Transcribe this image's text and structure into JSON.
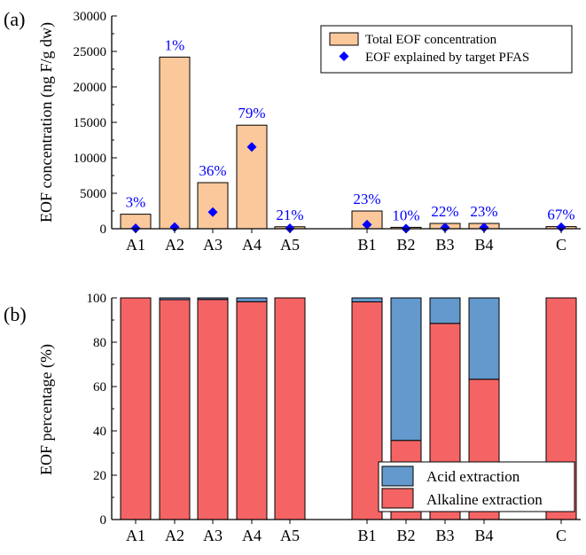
{
  "chart_data": [
    {
      "panel_label": "(a)",
      "type": "bar",
      "ylabel": "EOF concentration (ng F/g dw)",
      "ylim": [
        0,
        30000
      ],
      "yticks": [
        "0",
        "5000",
        "10000",
        "15000",
        "20000",
        "25000",
        "30000"
      ],
      "categories": [
        "A1",
        "A2",
        "A3",
        "A4",
        "A5",
        "B1",
        "B2",
        "B3",
        "B4",
        "C"
      ],
      "series": [
        {
          "name": "Total EOF concentration",
          "kind": "bar",
          "color": "#fbc89b",
          "values": [
            2050,
            24200,
            6500,
            14600,
            280,
            2500,
            200,
            750,
            750,
            300
          ]
        },
        {
          "name": "EOF explained by target PFAS",
          "kind": "marker",
          "color": "#0000ff",
          "values": [
            61,
            242,
            2340,
            11530,
            59,
            575,
            20,
            165,
            172,
            201
          ]
        }
      ],
      "bar_labels": [
        "3%",
        "1%",
        "36%",
        "79%",
        "21%",
        "23%",
        "10%",
        "22%",
        "23%",
        "67%"
      ],
      "label_color": "#0000ff",
      "legend": [
        "Total EOF concentration",
        "EOF explained by target PFAS"
      ]
    },
    {
      "panel_label": "(b)",
      "type": "bar",
      "stacked": true,
      "ylabel": "EOF percentage (%)",
      "ylim": [
        0,
        100
      ],
      "yticks": [
        "0",
        "20",
        "40",
        "60",
        "80",
        "100"
      ],
      "categories": [
        "A1",
        "A2",
        "A3",
        "A4",
        "A5",
        "B1",
        "B2",
        "B3",
        "B4",
        "C"
      ],
      "series": [
        {
          "name": "Alkaline extraction",
          "color": "#f56464",
          "values": [
            100,
            99.2,
            99.3,
            98.3,
            100,
            98.2,
            35.7,
            88.5,
            63.3,
            100
          ]
        },
        {
          "name": "Acid extraction",
          "color": "#6399cc",
          "values": [
            0,
            0.8,
            0.7,
            1.7,
            0,
            1.8,
            64.3,
            11.5,
            36.7,
            0
          ]
        }
      ],
      "legend": [
        "Acid extraction",
        "Alkaline extraction"
      ]
    }
  ]
}
